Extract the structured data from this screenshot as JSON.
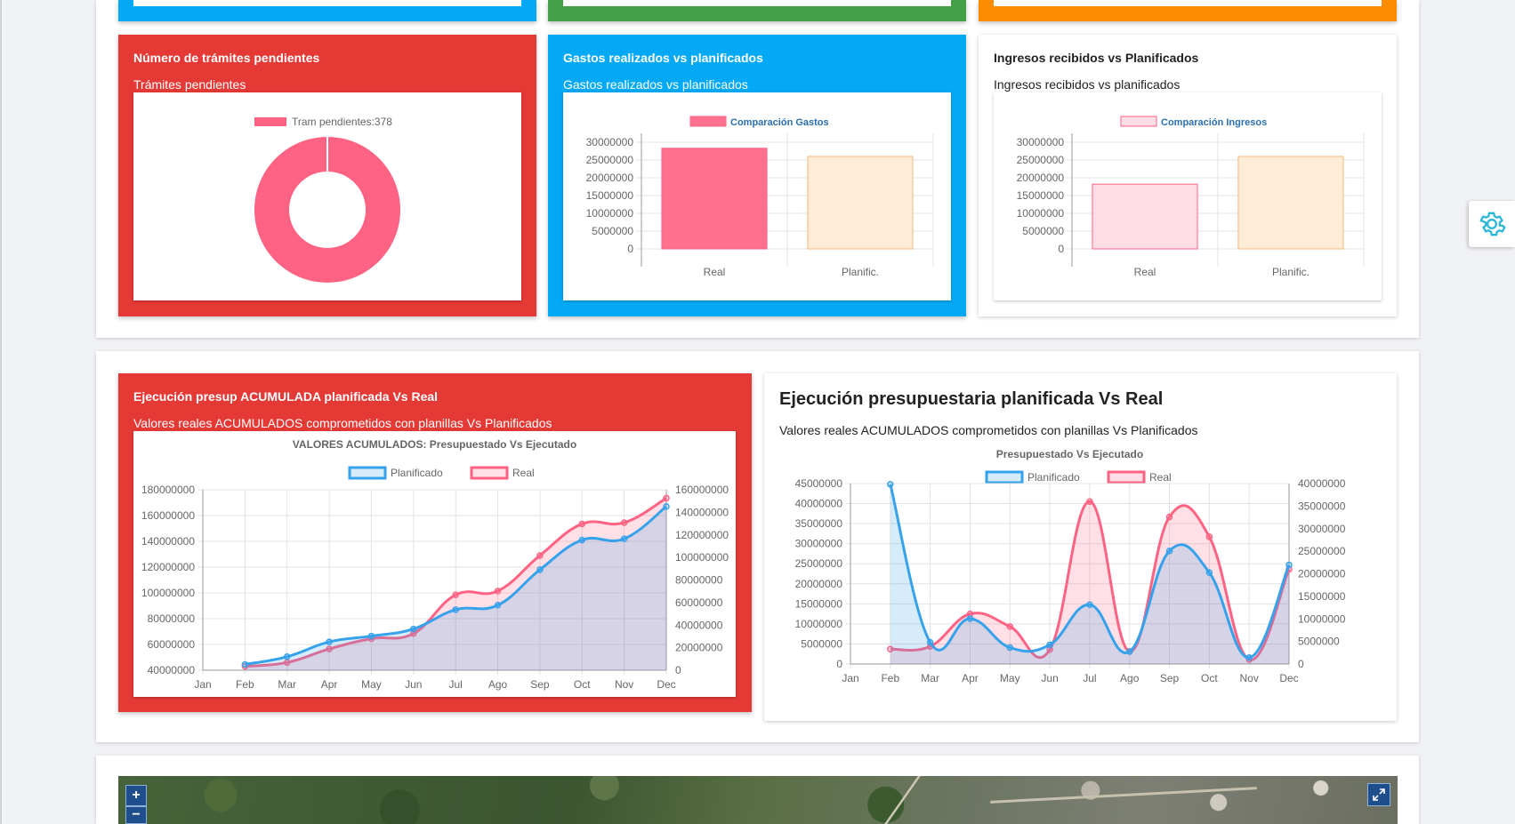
{
  "cards": {
    "tramites": {
      "title": "Número de trámites pendientes",
      "subtitle": "Trámites pendientes"
    },
    "gastos": {
      "title": "Gastos realizados vs planificados",
      "subtitle": "Gastos realizados vs planificados"
    },
    "ingresos": {
      "title": "Ingresos recibidos vs Planificados",
      "subtitle": "Ingresos recibidos vs planificados"
    },
    "acumulada": {
      "title": "Ejecución presup ACUMULADA planificada Vs Real",
      "subtitle": "Valores reales ACUMULADOS comprometidos con planillas Vs Planificados"
    },
    "ejecucion": {
      "title": "Ejecución presupuestaria planificada Vs Real",
      "subtitle": "Valores reales ACUMULADOS comprometidos con planillas Vs Planificados"
    }
  },
  "icons": {
    "settings": "gear-icon",
    "zoom_in": "plus-icon",
    "zoom_out": "minus-icon",
    "fullscreen": "expand-icon"
  },
  "map": {
    "zoom_in_label": "+",
    "zoom_out_label": "−"
  },
  "colors": {
    "red_card": "#e53935",
    "blue_card": "#03a9f4",
    "green_card": "#43a047",
    "orange_card": "#fb8c00",
    "pink": "#ff6384",
    "pink_fill": "rgba(255,99,132,0.2)",
    "blue": "#36a2eb",
    "blue_fill": "rgba(54,162,235,0.2)",
    "orange_bar_fill": "#ffecd6",
    "orange_bar_border": "#f5b87a",
    "settings_icon": "#29b6d8"
  },
  "chart_data": [
    {
      "id": "tramites",
      "type": "pie",
      "variant": "doughnut",
      "legend": [
        "Tram pendientes:378"
      ],
      "labels": [
        "Tram pendientes"
      ],
      "values": [
        378
      ],
      "colors": [
        "#ff6384"
      ]
    },
    {
      "id": "gastos",
      "type": "bar",
      "legend": [
        "Comparación Gastos"
      ],
      "categories": [
        "Real",
        "Planific."
      ],
      "values": [
        28300000,
        26000000
      ],
      "colors": [
        "#ff6f8e",
        "#ffecd6"
      ],
      "y_ticks": [
        "30000000",
        "25000000",
        "20000000",
        "15000000",
        "10000000",
        "5000000",
        "0"
      ],
      "ylim": [
        0,
        30000000
      ]
    },
    {
      "id": "ingresos",
      "type": "bar",
      "legend": [
        "Comparación Ingresos"
      ],
      "categories": [
        "Real",
        "Planific."
      ],
      "values": [
        18200000,
        26000000
      ],
      "colors": [
        "#ffdde4",
        "#ffecd6"
      ],
      "y_ticks": [
        "30000000",
        "25000000",
        "20000000",
        "15000000",
        "10000000",
        "5000000",
        "0"
      ],
      "ylim": [
        0,
        30000000
      ]
    },
    {
      "id": "acumulada",
      "type": "area",
      "title": "VALORES ACUMULADOS: Presupuestado Vs Ejecutado",
      "categories": [
        "Jan",
        "Feb",
        "Mar",
        "Apr",
        "May",
        "Jun",
        "Jul",
        "Ago",
        "Sep",
        "Oct",
        "Nov",
        "Dec"
      ],
      "series": [
        {
          "name": "Planificado",
          "axis": "left",
          "values": [
            null,
            44500000,
            50500000,
            62000000,
            66500000,
            72000000,
            87000000,
            90500000,
            118000000,
            141000000,
            142000000,
            167000000
          ]
        },
        {
          "name": "Real",
          "axis": "left",
          "values": [
            null,
            43000000,
            46000000,
            56500000,
            64500000,
            68500000,
            98500000,
            101500000,
            129000000,
            153500000,
            154500000,
            173500000
          ]
        }
      ],
      "y_left_ticks": [
        "180000000",
        "160000000",
        "140000000",
        "120000000",
        "100000000",
        "80000000",
        "60000000",
        "40000000"
      ],
      "y_right_ticks": [
        "160000000",
        "140000000",
        "120000000",
        "100000000",
        "80000000",
        "60000000",
        "40000000",
        "20000000",
        "0"
      ],
      "ylim": [
        40000000,
        180000000
      ]
    },
    {
      "id": "ejecucion",
      "type": "area",
      "title": "Presupuestado Vs Ejecutado",
      "categories": [
        "Jan",
        "Feb",
        "Mar",
        "Apr",
        "May",
        "Jun",
        "Jul",
        "Ago",
        "Sep",
        "Oct",
        "Nov",
        "Dec"
      ],
      "series": [
        {
          "name": "Planificado",
          "axis": "left",
          "values": [
            null,
            44800000,
            5400000,
            11300000,
            4100000,
            4800000,
            14800000,
            3100000,
            28200000,
            22800000,
            1600000,
            24700000
          ]
        },
        {
          "name": "Real",
          "axis": "right",
          "values": [
            null,
            3300000,
            3900000,
            11100000,
            8300000,
            3200000,
            36000000,
            2800000,
            32600000,
            28200000,
            1000000,
            21000000
          ]
        }
      ],
      "y_left_ticks": [
        "45000000",
        "40000000",
        "35000000",
        "30000000",
        "25000000",
        "20000000",
        "15000000",
        "10000000",
        "5000000",
        "0"
      ],
      "y_right_ticks": [
        "40000000",
        "35000000",
        "30000000",
        "25000000",
        "20000000",
        "15000000",
        "10000000",
        "5000000",
        "0"
      ],
      "ylim_left": [
        0,
        45000000
      ],
      "ylim_right": [
        0,
        40000000
      ]
    }
  ]
}
